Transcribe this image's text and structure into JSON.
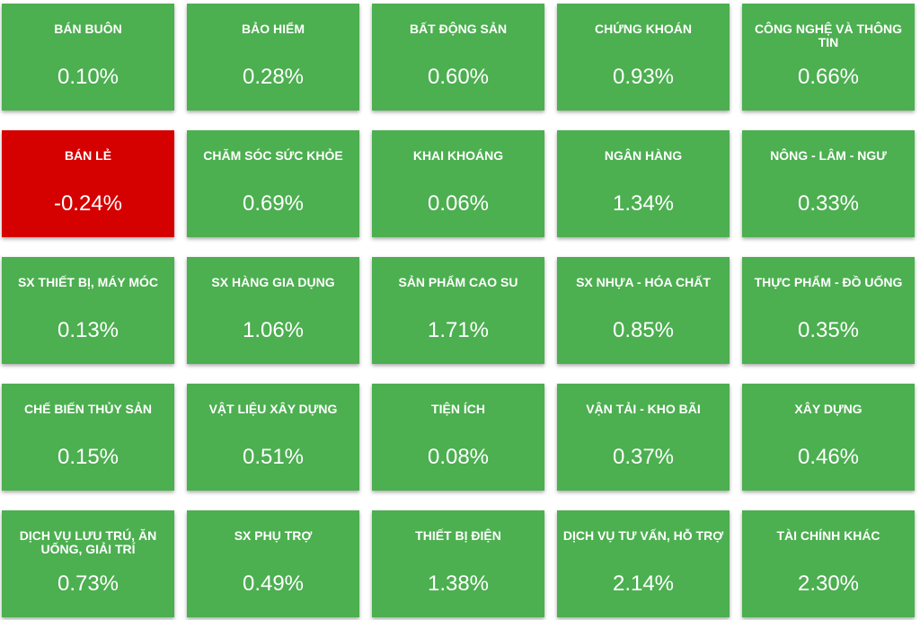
{
  "colors": {
    "up": "#4caf50",
    "down": "#d50000"
  },
  "sectors": [
    {
      "name": "BÁN BUÔN",
      "value": "0.10%",
      "trend": "up"
    },
    {
      "name": "BẢO HIỂM",
      "value": "0.28%",
      "trend": "up"
    },
    {
      "name": "BẤT ĐỘNG SẢN",
      "value": "0.60%",
      "trend": "up"
    },
    {
      "name": "CHỨNG KHOÁN",
      "value": "0.93%",
      "trend": "up"
    },
    {
      "name": "CÔNG NGHỆ VÀ THÔNG TIN",
      "value": "0.66%",
      "trend": "up"
    },
    {
      "name": "BÁN LẺ",
      "value": "-0.24%",
      "trend": "down"
    },
    {
      "name": "CHĂM SÓC SỨC KHỎE",
      "value": "0.69%",
      "trend": "up"
    },
    {
      "name": "KHAI KHOÁNG",
      "value": "0.06%",
      "trend": "up"
    },
    {
      "name": "NGÂN HÀNG",
      "value": "1.34%",
      "trend": "up"
    },
    {
      "name": "NÔNG - LÂM - NGƯ",
      "value": "0.33%",
      "trend": "up"
    },
    {
      "name": "SX THIẾT BỊ, MÁY MÓC",
      "value": "0.13%",
      "trend": "up"
    },
    {
      "name": "SX HÀNG GIA DỤNG",
      "value": "1.06%",
      "trend": "up"
    },
    {
      "name": "SẢN PHẨM CAO SU",
      "value": "1.71%",
      "trend": "up"
    },
    {
      "name": "SX NHỰA - HÓA CHẤT",
      "value": "0.85%",
      "trend": "up"
    },
    {
      "name": "THỰC PHẨM - ĐỒ UỐNG",
      "value": "0.35%",
      "trend": "up"
    },
    {
      "name": "CHẾ BIẾN THỦY SẢN",
      "value": "0.15%",
      "trend": "up"
    },
    {
      "name": "VẬT LIỆU XÂY DỰNG",
      "value": "0.51%",
      "trend": "up"
    },
    {
      "name": "TIỆN ÍCH",
      "value": "0.08%",
      "trend": "up"
    },
    {
      "name": "VẬN TẢI - KHO BÃI",
      "value": "0.37%",
      "trend": "up"
    },
    {
      "name": "XÂY DỰNG",
      "value": "0.46%",
      "trend": "up"
    },
    {
      "name": "DỊCH VỤ LƯU TRÚ, ĂN UỐNG, GIẢI TRÍ",
      "value": "0.73%",
      "trend": "up"
    },
    {
      "name": "SX PHỤ TRỢ",
      "value": "0.49%",
      "trend": "up"
    },
    {
      "name": "THIẾT BỊ ĐIỆN",
      "value": "1.38%",
      "trend": "up"
    },
    {
      "name": "DỊCH VỤ TƯ VẤN, HỖ TRỢ",
      "value": "2.14%",
      "trend": "up"
    },
    {
      "name": "TÀI CHÍNH KHÁC",
      "value": "2.30%",
      "trend": "up"
    }
  ]
}
